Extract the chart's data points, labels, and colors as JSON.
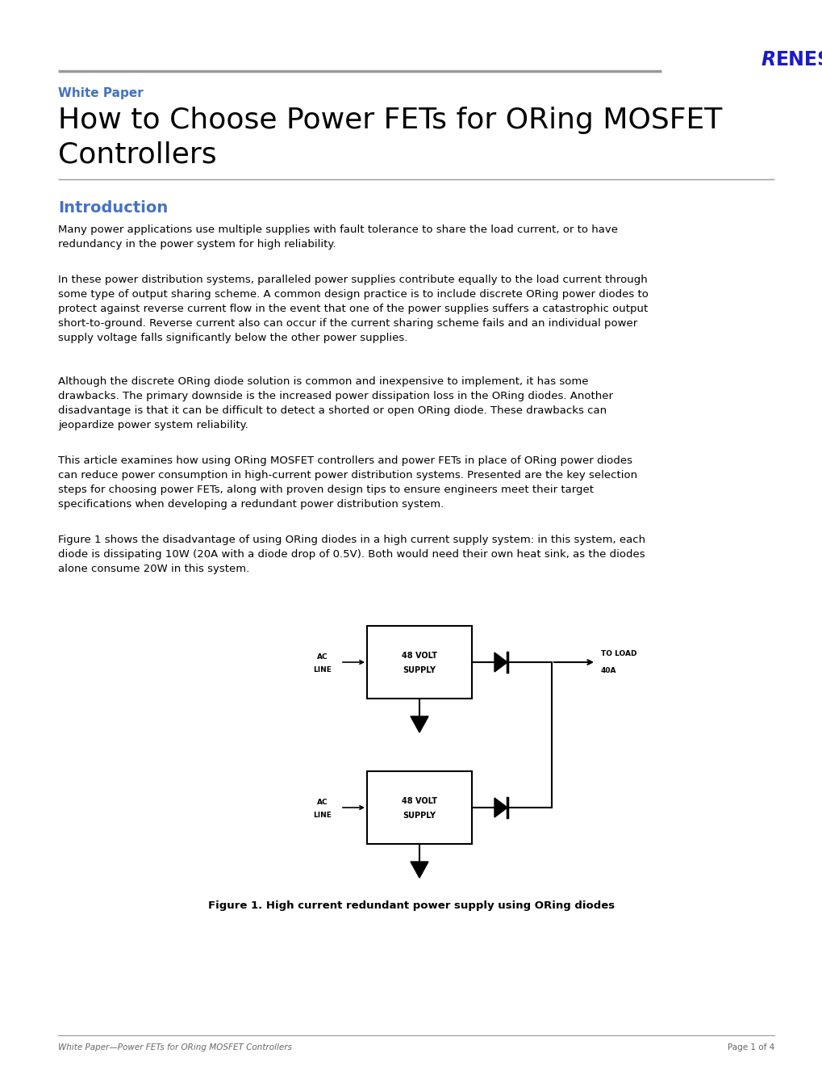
{
  "bg_color": "#ffffff",
  "renesas_color": "#1a1acc",
  "header_line_color": "#999999",
  "white_paper_label": "White Paper",
  "white_paper_color": "#4472c4",
  "title_line1": "How to Choose Power FETs for ORing MOSFET",
  "title_line2": "Controllers",
  "title_color": "#000000",
  "title_fontsize": 26,
  "section_title": "Introduction",
  "section_color": "#4472c4",
  "section_fontsize": 14,
  "body_color": "#000000",
  "body_fontsize": 9.5,
  "para1": "Many power applications use multiple supplies with fault tolerance to share the load current, or to have\nredundancy in the power system for high reliability.",
  "para2": "In these power distribution systems, paralleled power supplies contribute equally to the load current through\nsome type of output sharing scheme. A common design practice is to include discrete ORing power diodes to\nprotect against reverse current flow in the event that one of the power supplies suffers a catastrophic output\nshort-to-ground. Reverse current also can occur if the current sharing scheme fails and an individual power\nsupply voltage falls significantly below the other power supplies.",
  "para3": "Although the discrete ORing diode solution is common and inexpensive to implement, it has some\ndrawbacks. The primary downside is the increased power dissipation loss in the ORing diodes. Another\ndisadvantage is that it can be difficult to detect a shorted or open ORing diode. These drawbacks can\njeopardize power system reliability.",
  "para4": "This article examines how using ORing MOSFET controllers and power FETs in place of ORing power diodes\ncan reduce power consumption in high-current power distribution systems. Presented are the key selection\nsteps for choosing power FETs, along with proven design tips to ensure engineers meet their target\nspecifications when developing a redundant power distribution system.",
  "para5": "Figure 1 shows the disadvantage of using ORing diodes in a high current supply system: in this system, each\ndiode is dissipating 10W (20A with a diode drop of 0.5V). Both would need their own heat sink, as the diodes\nalone consume 20W in this system.",
  "figure_caption": "Figure 1. High current redundant power supply using ORing diodes",
  "footer_left": "White Paper—Power FETs for ORing MOSFET Controllers",
  "footer_right": "Page 1 of 4",
  "footer_color": "#666666"
}
